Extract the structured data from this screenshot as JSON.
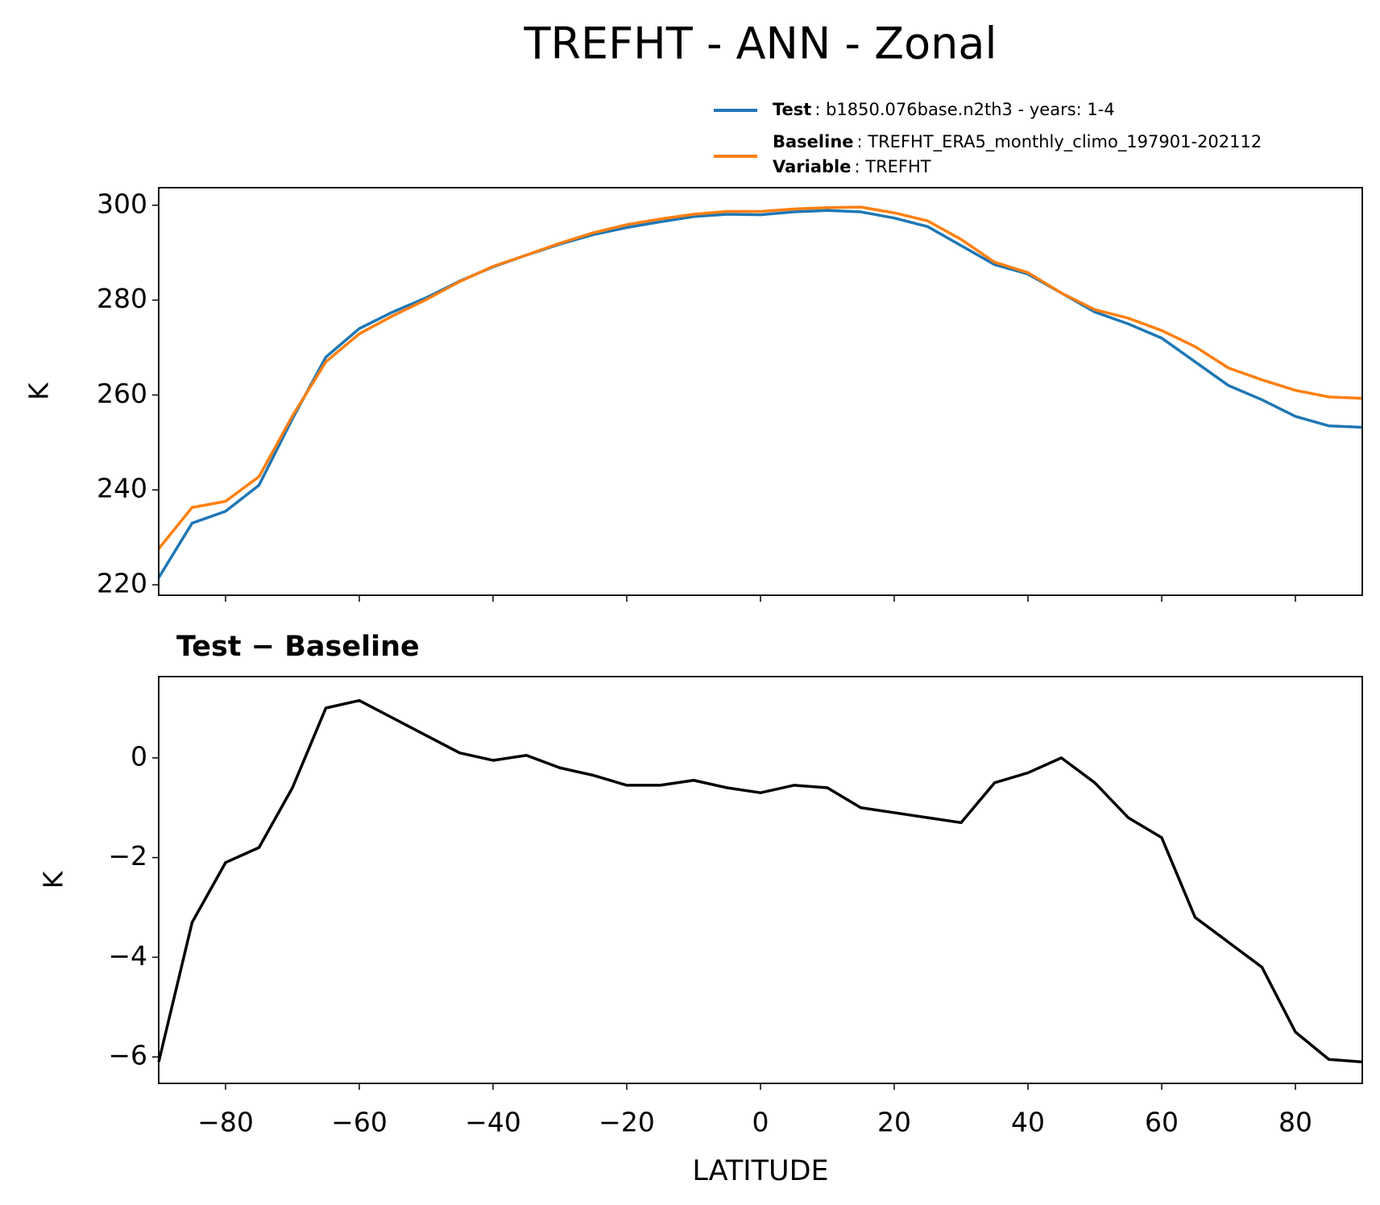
{
  "chart_data": [
    {
      "type": "line",
      "title": "TREFHT - ANN - Zonal",
      "ylabel": "K",
      "x": [
        -90,
        -85,
        -80,
        -75,
        -70,
        -65,
        -60,
        -55,
        -50,
        -45,
        -40,
        -35,
        -30,
        -25,
        -20,
        -15,
        -10,
        -5,
        0,
        5,
        10,
        15,
        20,
        25,
        30,
        35,
        40,
        45,
        50,
        55,
        60,
        65,
        70,
        75,
        80,
        85,
        90
      ],
      "series": [
        {
          "name": "Test",
          "description": ": b1850.076base.n2th3 - years: 1-4",
          "color": "#1f77b4",
          "values": [
            221.5,
            233,
            235.5,
            241,
            255,
            268,
            274,
            277.5,
            280.5,
            284,
            287,
            289.5,
            291.8,
            293.8,
            295.3,
            296.5,
            297.6,
            298.1,
            298,
            298.6,
            298.9,
            298.6,
            297.3,
            295.5,
            291.5,
            287.5,
            285.5,
            281.5,
            277.5,
            275,
            272,
            267,
            262,
            259,
            255.5,
            253.5,
            253.2
          ]
        },
        {
          "name": "Baseline",
          "description": ": TREFHT_ERA5_monthly_climo_197901-202112",
          "color": "#ff7f0e",
          "values": [
            227.6,
            236.3,
            237.6,
            242.8,
            255.6,
            267,
            272.9,
            276.7,
            280.1,
            283.9,
            287.1,
            289.5,
            292,
            294.2,
            295.9,
            297.1,
            298.1,
            298.7,
            298.7,
            299.2,
            299.5,
            299.6,
            298.4,
            296.7,
            292.8,
            288,
            285.8,
            281.5,
            278,
            276.2,
            273.6,
            270.2,
            265.7,
            263.2,
            261,
            259.6,
            259.3
          ]
        }
      ],
      "variable": {
        "name": "Variable",
        "description": ": TREFHT"
      },
      "xlim": [
        -90,
        90
      ],
      "xticks": [
        -80,
        -60,
        -40,
        -20,
        0,
        20,
        40,
        60,
        80
      ],
      "ylim": [
        217.8,
        303.7
      ],
      "yticks": [
        220,
        240,
        260,
        280,
        300
      ]
    },
    {
      "type": "line",
      "title": "Test − Baseline",
      "ylabel": "K",
      "xlabel": "LATITUDE",
      "color": "#000000",
      "x": [
        -90,
        -85,
        -80,
        -75,
        -70,
        -65,
        -60,
        -55,
        -50,
        -45,
        -40,
        -35,
        -30,
        -25,
        -20,
        -15,
        -10,
        -5,
        0,
        5,
        10,
        15,
        20,
        25,
        30,
        35,
        40,
        45,
        50,
        55,
        60,
        65,
        70,
        75,
        80,
        85,
        90
      ],
      "values": [
        -6.1,
        -3.3,
        -2.1,
        -1.8,
        -0.6,
        1.0,
        1.15,
        0.8,
        0.45,
        0.1,
        -0.05,
        0.05,
        -0.2,
        -0.35,
        -0.55,
        -0.55,
        -0.45,
        -0.6,
        -0.7,
        -0.55,
        -0.6,
        -1.0,
        -1.1,
        -1.2,
        -1.3,
        -0.5,
        -0.3,
        0.0,
        -0.5,
        -1.2,
        -1.6,
        -3.2,
        -3.7,
        -4.2,
        -5.5,
        -6.05,
        -6.1
      ],
      "xlim": [
        -90,
        90
      ],
      "xticks": [
        {
          "value": -80,
          "label": "−80"
        },
        {
          "value": -60,
          "label": "−60"
        },
        {
          "value": -40,
          "label": "−40"
        },
        {
          "value": -20,
          "label": "−20"
        },
        0,
        20,
        40,
        60,
        80
      ],
      "ylim": [
        -6.53,
        1.63
      ],
      "yticks": [
        {
          "value": -6,
          "label": "−6"
        },
        {
          "value": -4,
          "label": "−4"
        },
        {
          "value": -2,
          "label": "−2"
        },
        0
      ]
    }
  ]
}
